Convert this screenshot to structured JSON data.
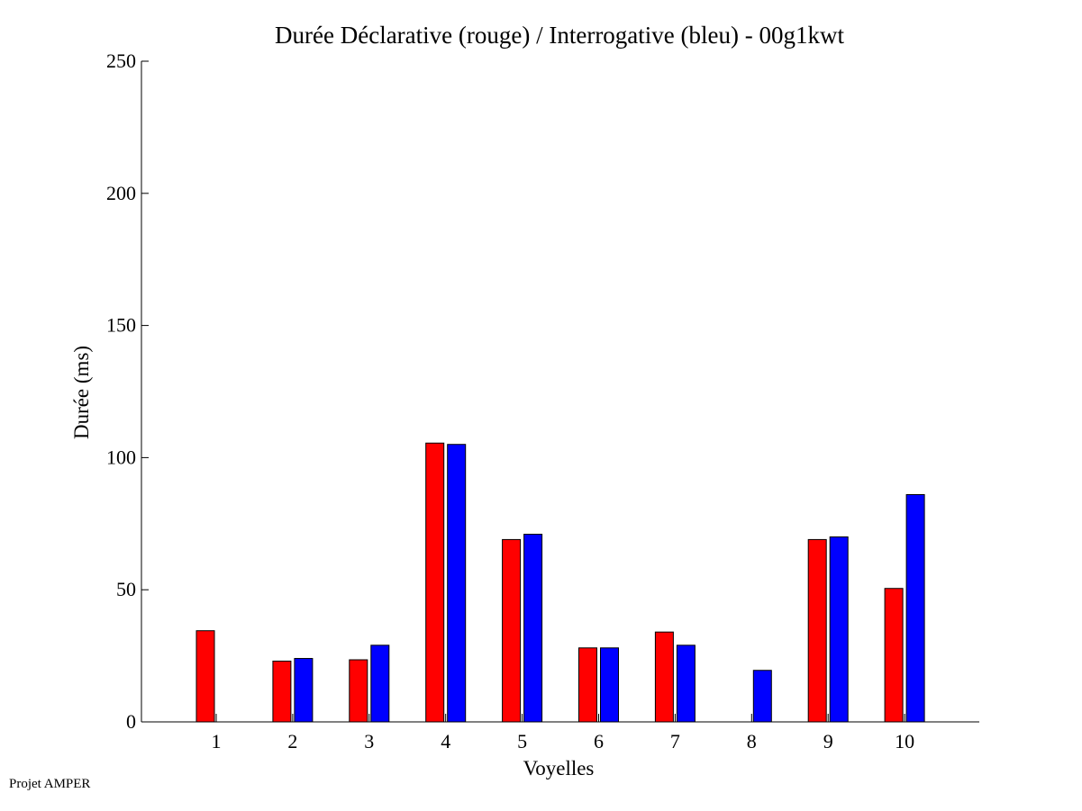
{
  "chart_data": {
    "type": "bar",
    "title": "Durée Déclarative (rouge) / Interrogative (bleu) - 00g1kwt",
    "xlabel": "Voyelles",
    "ylabel": "Durée (ms)",
    "ylim": [
      0,
      250
    ],
    "yticks": [
      0,
      50,
      100,
      150,
      200,
      250
    ],
    "categories": [
      "1",
      "2",
      "3",
      "4",
      "5",
      "6",
      "7",
      "8",
      "9",
      "10"
    ],
    "series": [
      {
        "color": "#ff0000",
        "values": [
          34.5,
          23,
          23.5,
          105.5,
          69,
          28,
          34,
          0,
          69,
          50.5
        ]
      },
      {
        "color": "#0000ff",
        "values": [
          0,
          24,
          29,
          105,
          71,
          28,
          29,
          19.5,
          70,
          86
        ]
      }
    ],
    "grid": false,
    "legend": "none"
  },
  "footer": "Projet AMPER"
}
